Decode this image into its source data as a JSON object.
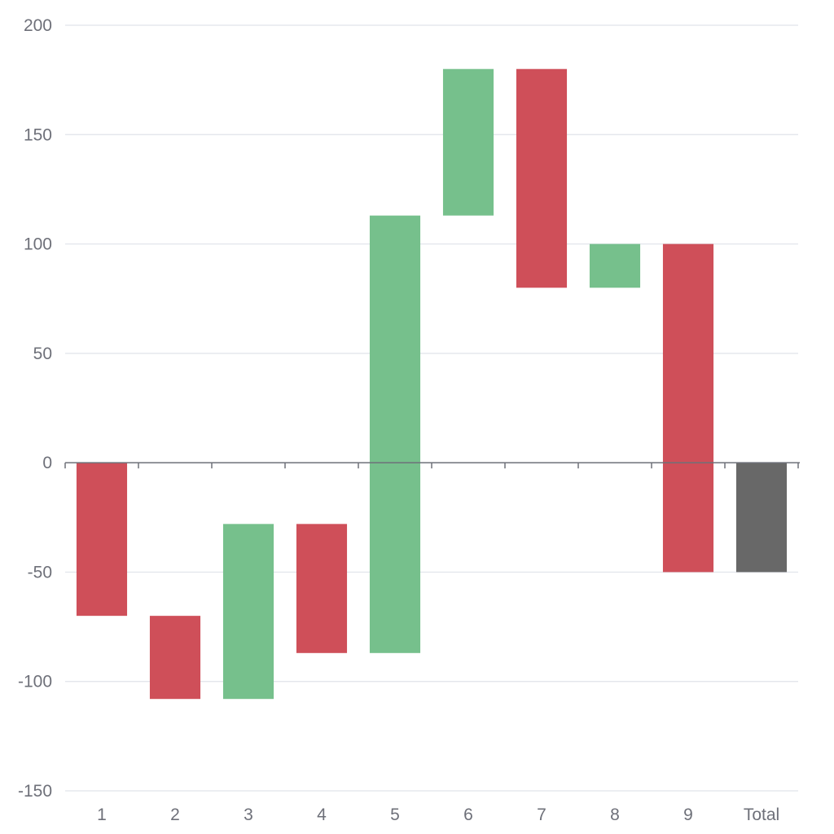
{
  "chart_data": {
    "type": "bar",
    "subtype": "waterfall",
    "title": "",
    "xlabel": "",
    "ylabel": "",
    "categories": [
      "1",
      "2",
      "3",
      "4",
      "5",
      "6",
      "7",
      "8",
      "9",
      "Total"
    ],
    "series": [
      {
        "kind": "change",
        "values": [
          -70,
          -38,
          80,
          -59,
          200,
          67,
          -100,
          20,
          -150,
          null
        ]
      },
      {
        "kind": "total",
        "values": [
          null,
          null,
          null,
          null,
          null,
          null,
          null,
          null,
          null,
          -50
        ]
      }
    ],
    "bars": [
      {
        "category": "1",
        "start": 0,
        "end": -70,
        "kind": "decrease"
      },
      {
        "category": "2",
        "start": -70,
        "end": -108,
        "kind": "decrease"
      },
      {
        "category": "3",
        "start": -108,
        "end": -28,
        "kind": "increase"
      },
      {
        "category": "4",
        "start": -28,
        "end": -87,
        "kind": "decrease"
      },
      {
        "category": "5",
        "start": -87,
        "end": 113,
        "kind": "increase"
      },
      {
        "category": "6",
        "start": 113,
        "end": 180,
        "kind": "increase"
      },
      {
        "category": "7",
        "start": 180,
        "end": 80,
        "kind": "decrease"
      },
      {
        "category": "8",
        "start": 80,
        "end": 100,
        "kind": "increase"
      },
      {
        "category": "9",
        "start": 100,
        "end": -50,
        "kind": "decrease"
      },
      {
        "category": "Total",
        "start": 0,
        "end": -50,
        "kind": "total"
      }
    ],
    "ylim": [
      -150,
      200
    ],
    "yticks": [
      200,
      150,
      100,
      50,
      0,
      -50,
      -100,
      -150
    ],
    "grid": true,
    "legend": "none",
    "colors": {
      "increase": "#76c08c",
      "decrease": "#cf4f59",
      "total": "#686868"
    }
  }
}
